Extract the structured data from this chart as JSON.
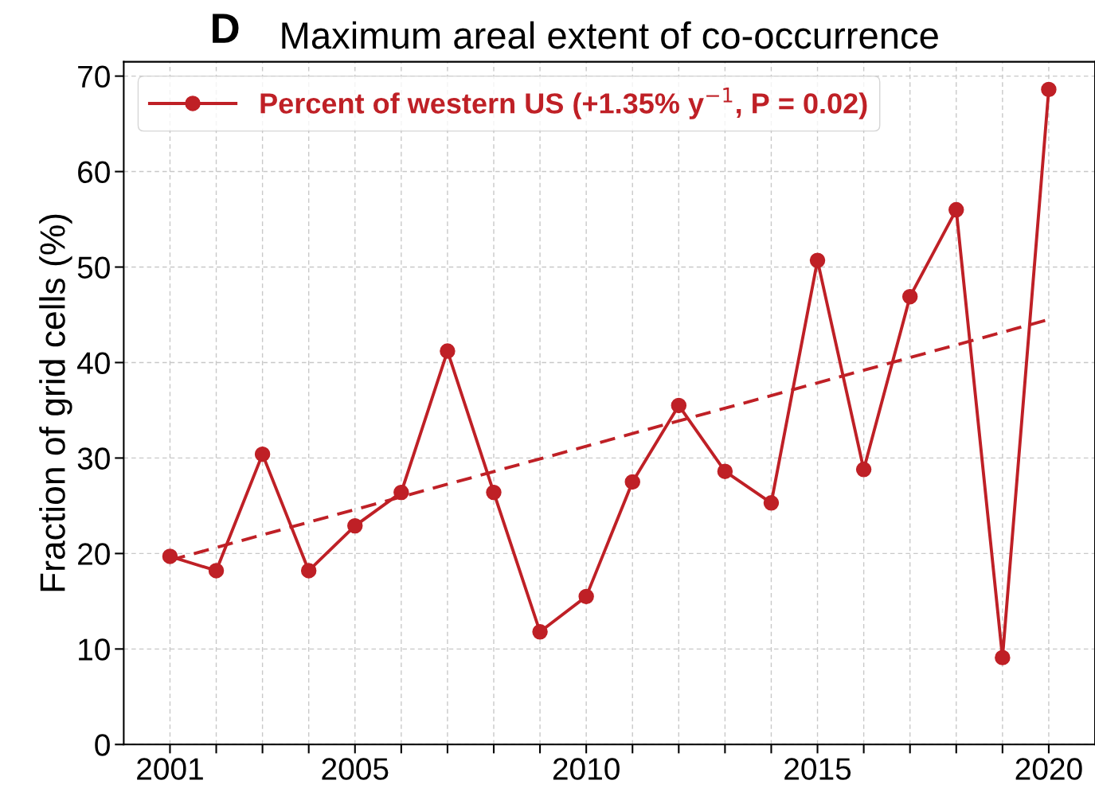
{
  "chart_data": {
    "type": "line",
    "title": "Maximum areal extent of co-occurrence",
    "annotations": [
      "D"
    ],
    "ylabel": "Fraction of grid cells (%)",
    "x": [
      2001,
      2002,
      2003,
      2004,
      2005,
      2006,
      2007,
      2008,
      2009,
      2010,
      2011,
      2012,
      2013,
      2014,
      2015,
      2016,
      2017,
      2018,
      2019,
      2020
    ],
    "series": [
      {
        "name": "Percent of western US (+1.35% y$^{−1}$, P = 0.02)",
        "color": "#bf2026",
        "marker": "circle",
        "line_style": "solid",
        "values": [
          19.7,
          18.2,
          30.4,
          18.2,
          22.9,
          26.4,
          41.2,
          26.4,
          11.8,
          15.5,
          27.5,
          35.5,
          28.6,
          25.3,
          50.7,
          28.8,
          46.9,
          56.0,
          9.1,
          68.6
        ]
      },
      {
        "type": "line",
        "color": "#bf2026",
        "marker": "none",
        "line_style": "dashed",
        "x": [
          2001,
          2020
        ],
        "values": [
          19.3,
          44.5
        ]
      }
    ],
    "xlim": [
      2000,
      2021
    ],
    "xticks": [
      2001,
      {
        "value": 2002,
        "label": null
      },
      {
        "value": 2003,
        "label": null
      },
      {
        "value": 2004,
        "label": null
      },
      2005,
      {
        "value": 2006,
        "label": null
      },
      {
        "value": 2007,
        "label": null
      },
      {
        "value": 2008,
        "label": null
      },
      {
        "value": 2009,
        "label": null
      },
      2010,
      {
        "value": 2011,
        "label": null
      },
      {
        "value": 2012,
        "label": null
      },
      {
        "value": 2013,
        "label": null
      },
      {
        "value": 2014,
        "label": null
      },
      2015,
      {
        "value": 2016,
        "label": null
      },
      {
        "value": 2017,
        "label": null
      },
      {
        "value": 2018,
        "label": null
      },
      {
        "value": 2019,
        "label": null
      },
      2020
    ],
    "ylim": [
      0,
      71.5
    ],
    "yticks": [
      0,
      10,
      20,
      30,
      40,
      50,
      60,
      70
    ],
    "grid": true,
    "legend": "top left"
  }
}
